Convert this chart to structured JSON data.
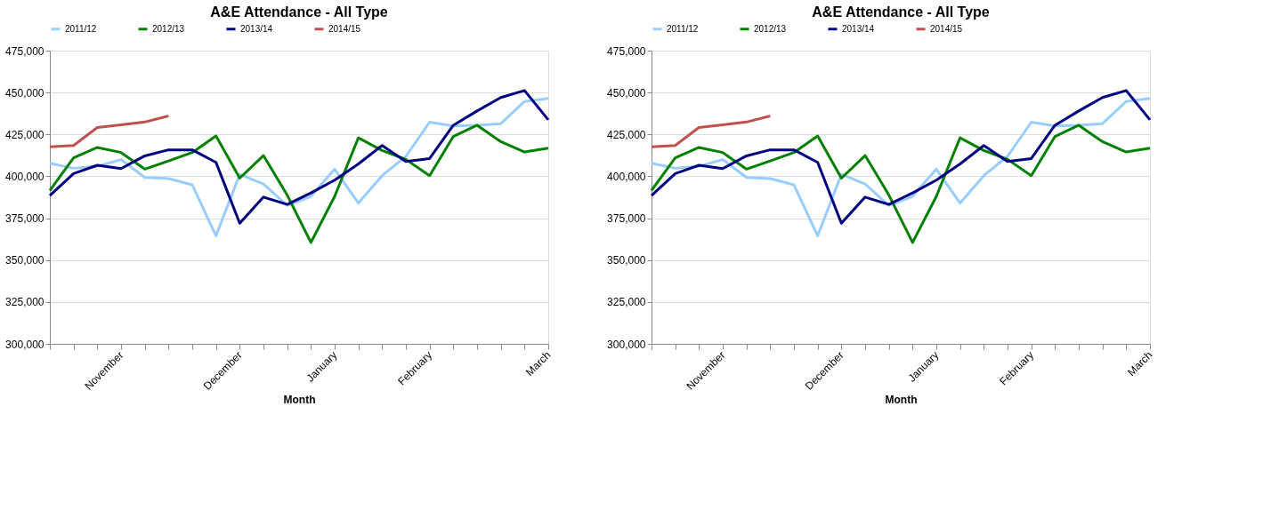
{
  "chart_data": [
    {
      "type": "line",
      "title": "A&E Attendance - All Type",
      "xlabel": "Month",
      "categories": [
        null,
        null,
        null,
        "November",
        null,
        null,
        null,
        null,
        "December",
        null,
        null,
        null,
        "January",
        null,
        null,
        null,
        "February",
        null,
        null,
        null,
        null,
        "March"
      ],
      "series": [
        {
          "name": "2011/12",
          "color": "#99ccff",
          "values": [
            407800,
            404800,
            406000,
            410000,
            399300,
            398600,
            394900,
            364500,
            401200,
            395400,
            382600,
            388000,
            404300,
            384000,
            400400,
            411900,
            432300,
            430100,
            430500,
            431400,
            444700,
            446500
          ]
        },
        {
          "name": "2012/13",
          "color": "#008000",
          "values": [
            391500,
            411000,
            417200,
            414200,
            404300,
            409200,
            414200,
            424100,
            398900,
            412400,
            388800,
            360500,
            388000,
            423000,
            415400,
            410100,
            400400,
            423800,
            430500,
            420700,
            414500,
            416800
          ]
        },
        {
          "name": "2013/14",
          "color": "#000080",
          "values": [
            388500,
            401600,
            406600,
            404600,
            412200,
            415800,
            415800,
            408300,
            372000,
            387600,
            383200,
            390100,
            397700,
            407400,
            418400,
            408900,
            410600,
            430500,
            439000,
            447000,
            451200,
            433700
          ]
        },
        {
          "name": "2014/15",
          "color": "#c0504d",
          "values": [
            417600,
            418400,
            429100,
            430700,
            432400,
            436000,
            null,
            null,
            null,
            null,
            null,
            null,
            null,
            null,
            null,
            null,
            null,
            null,
            null,
            null,
            null,
            null
          ]
        }
      ],
      "ylim": [
        300000,
        475000
      ],
      "yticks": [
        {
          "value": 300000,
          "label": "300,000"
        },
        {
          "value": 325000,
          "label": "325,000"
        },
        {
          "value": 350000,
          "label": "350,000"
        },
        {
          "value": 375000,
          "label": "375,000"
        },
        {
          "value": 400000,
          "label": "400,000"
        },
        {
          "value": 425000,
          "label": "425,000"
        },
        {
          "value": 450000,
          "label": "450,000"
        },
        {
          "value": 475000,
          "label": "475,000"
        }
      ],
      "grid": "y",
      "legend": "top",
      "line_style": "solid"
    },
    {
      "type": "line",
      "title": "A&E Attendance - All Type",
      "xlabel": "Month",
      "categories": [
        null,
        null,
        null,
        "November",
        null,
        null,
        null,
        null,
        "December",
        null,
        null,
        null,
        "January",
        null,
        null,
        null,
        "February",
        null,
        null,
        null,
        null,
        "March"
      ],
      "series": [
        {
          "name": "2011/12",
          "color": "#99ccff",
          "values": [
            407800,
            404800,
            406000,
            410000,
            399300,
            398600,
            394900,
            364500,
            401200,
            395400,
            382600,
            388000,
            404300,
            384000,
            400400,
            411900,
            432300,
            430100,
            430500,
            431400,
            444700,
            446500
          ]
        },
        {
          "name": "2012/13",
          "color": "#008000",
          "values": [
            391500,
            411000,
            417200,
            414200,
            404300,
            409200,
            414200,
            424100,
            398900,
            412400,
            388800,
            360500,
            388000,
            423000,
            415400,
            410100,
            400400,
            423800,
            430500,
            420700,
            414500,
            416800
          ]
        },
        {
          "name": "2013/14",
          "color": "#000080",
          "values": [
            388500,
            401600,
            406600,
            404600,
            412200,
            415800,
            415800,
            408300,
            372000,
            387600,
            383200,
            390100,
            397700,
            407400,
            418400,
            408900,
            410600,
            430500,
            439000,
            447000,
            451200,
            433700
          ]
        },
        {
          "name": "2014/15",
          "color": "#c0504d",
          "values": [
            417600,
            418400,
            429100,
            430700,
            432400,
            436000,
            null,
            null,
            null,
            null,
            null,
            null,
            null,
            null,
            null,
            null,
            null,
            null,
            null,
            null,
            null,
            null
          ]
        }
      ],
      "ylim": [
        300000,
        475000
      ],
      "yticks": [
        {
          "value": 300000,
          "label": "300,000"
        },
        {
          "value": 325000,
          "label": "325,000"
        },
        {
          "value": 350000,
          "label": "350,000"
        },
        {
          "value": 375000,
          "label": "375,000"
        },
        {
          "value": 400000,
          "label": "400,000"
        },
        {
          "value": 425000,
          "label": "425,000"
        },
        {
          "value": 450000,
          "label": "450,000"
        },
        {
          "value": 475000,
          "label": "475,000"
        }
      ],
      "grid": "y",
      "legend": "top",
      "line_style": "solid"
    }
  ]
}
